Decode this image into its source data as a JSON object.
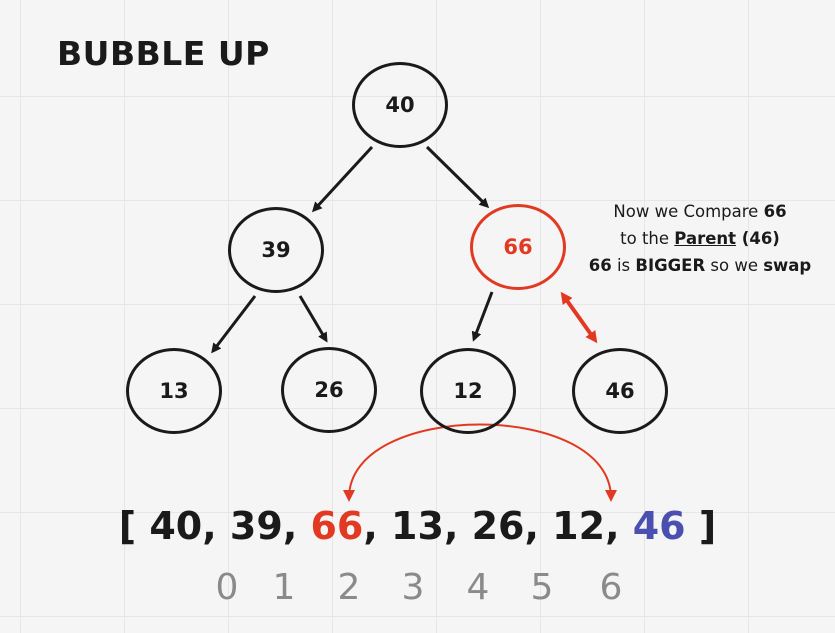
{
  "title": "BUBBLE UP",
  "colors": {
    "highlight": "#e23a22",
    "swap_target": "#4b4faf",
    "ink": "#1a1a1a",
    "index": "#8a8a8a"
  },
  "nodes": [
    {
      "id": "n0",
      "value": "40",
      "highlight": false
    },
    {
      "id": "n1",
      "value": "39",
      "highlight": false
    },
    {
      "id": "n2",
      "value": "66",
      "highlight": true
    },
    {
      "id": "n3",
      "value": "13",
      "highlight": false
    },
    {
      "id": "n4",
      "value": "26",
      "highlight": false
    },
    {
      "id": "n5",
      "value": "12",
      "highlight": false
    },
    {
      "id": "n6",
      "value": "46",
      "highlight": false
    }
  ],
  "note": {
    "line1_pre": "Now we Compare ",
    "line1_bold": "66",
    "line2_pre": "to the ",
    "line2_link": "Parent",
    "line2_bold": " (46)",
    "line3_bold1": "66",
    "line3_mid": " is ",
    "line3_bold2": "BIGGER",
    "line3_post": " so we ",
    "line3_bold3": "swap"
  },
  "array": {
    "open": "[ ",
    "values": [
      "40",
      "39",
      "66",
      "13",
      "26",
      "12",
      "46"
    ],
    "separator": ", ",
    "close": " ]",
    "indices": [
      "0",
      "1",
      "2",
      "3",
      "4",
      "5",
      "6"
    ]
  }
}
